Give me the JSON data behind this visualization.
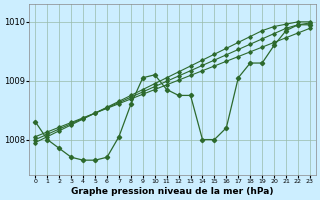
{
  "xlabel": "Graphe pression niveau de la mer (hPa)",
  "bg_color": "#cceeff",
  "grid_color": "#99bbaa",
  "line_color": "#2d6a2d",
  "ylim": [
    1007.4,
    1010.3
  ],
  "yticks": [
    1008,
    1009,
    1010
  ],
  "xlim": [
    -0.5,
    23.5
  ],
  "xticks": [
    0,
    1,
    2,
    3,
    4,
    5,
    6,
    7,
    8,
    9,
    10,
    11,
    12,
    13,
    14,
    15,
    16,
    17,
    18,
    19,
    20,
    21,
    22,
    23
  ],
  "y_jagged": [
    1008.3,
    1008.0,
    1007.85,
    1007.7,
    1007.65,
    1007.65,
    1007.7,
    1008.05,
    1008.6,
    1009.05,
    1009.1,
    1008.85,
    1008.75,
    1008.75,
    1008.0,
    1008.0,
    1008.2,
    1009.05,
    1009.3,
    1009.3,
    1009.6,
    1009.85,
    1009.95,
    1009.95
  ],
  "y_linear1": [
    1008.05,
    1008.13,
    1008.21,
    1008.29,
    1008.37,
    1008.45,
    1008.53,
    1008.61,
    1008.69,
    1008.77,
    1008.85,
    1008.93,
    1009.01,
    1009.09,
    1009.17,
    1009.25,
    1009.33,
    1009.41,
    1009.49,
    1009.57,
    1009.65,
    1009.73,
    1009.81,
    1009.89
  ],
  "y_linear2": [
    1008.0,
    1008.09,
    1008.18,
    1008.27,
    1008.36,
    1008.45,
    1008.54,
    1008.63,
    1008.72,
    1008.81,
    1008.9,
    1008.99,
    1009.08,
    1009.17,
    1009.26,
    1009.35,
    1009.44,
    1009.53,
    1009.62,
    1009.71,
    1009.8,
    1009.89,
    1009.95,
    1009.98
  ],
  "y_linear3": [
    1007.95,
    1008.05,
    1008.15,
    1008.25,
    1008.35,
    1008.45,
    1008.55,
    1008.65,
    1008.75,
    1008.85,
    1008.95,
    1009.05,
    1009.15,
    1009.25,
    1009.35,
    1009.45,
    1009.55,
    1009.65,
    1009.75,
    1009.85,
    1009.92,
    1009.96,
    1010.0,
    1010.0
  ]
}
